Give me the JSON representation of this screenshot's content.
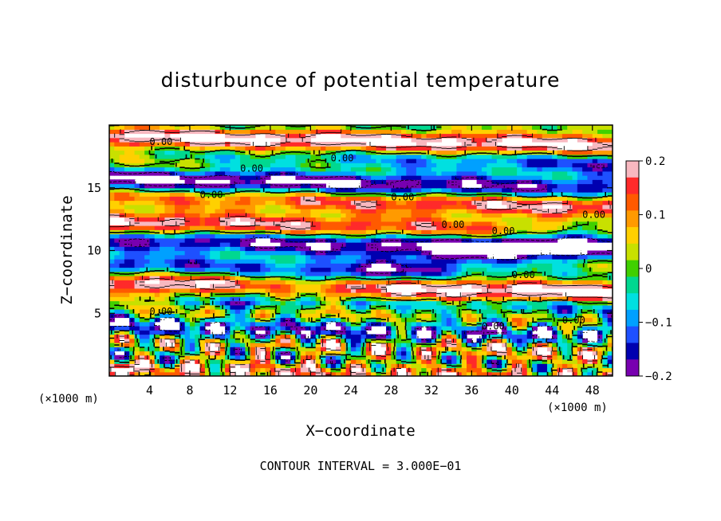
{
  "chart_data": {
    "type": "heatmap",
    "title": "disturbunce of potential temperature",
    "xlabel": "X−coordinate",
    "ylabel": "Z−coordinate",
    "x_unit_left": "(×1000 m)",
    "x_unit_right": "(×1000 m)",
    "xlim": [
      0,
      50
    ],
    "ylim": [
      0,
      20
    ],
    "x_ticks": [
      4,
      8,
      12,
      16,
      20,
      24,
      28,
      32,
      36,
      40,
      44,
      48
    ],
    "y_ticks": [
      5,
      10,
      15
    ],
    "colorbar": {
      "range": [
        -0.2,
        0.2
      ],
      "tick_values": [
        0.2,
        0.1,
        0,
        -0.1,
        -0.2
      ],
      "tick_labels": [
        "0.2",
        "0.1",
        "0",
        "−0.1",
        "−0.2"
      ],
      "colors": [
        "#f8b8c0",
        "#ff2a2a",
        "#ff5a00",
        "#ff9a00",
        "#ffd000",
        "#c8e000",
        "#40d000",
        "#00d890",
        "#00e0e0",
        "#00a0ff",
        "#1e50ff",
        "#0000b0",
        "#7800b0"
      ]
    },
    "contour_labels": [
      "0.00"
    ],
    "footer": "CONTOUR INTERVAL = 3.000E−01",
    "grid": false
  }
}
